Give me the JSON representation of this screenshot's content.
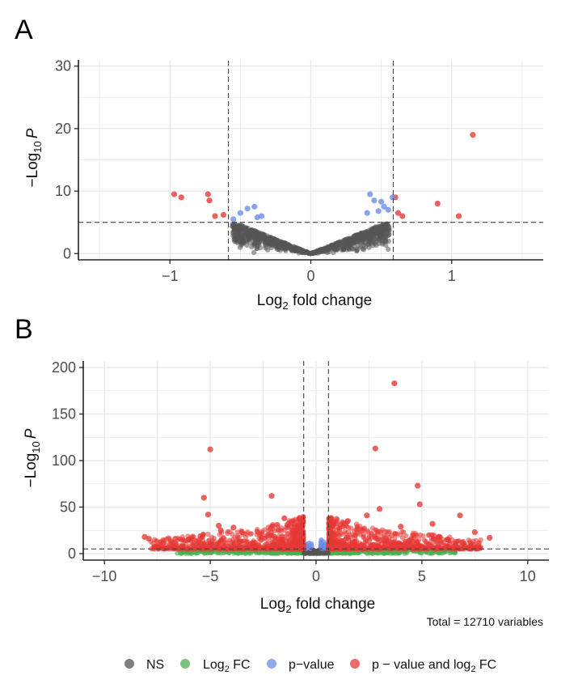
{
  "chart_data": [
    {
      "panel": "A",
      "type": "scatter",
      "xlabel_main": "Log",
      "xlabel_sub": "2",
      "xlabel_rest": " fold change",
      "ylabel_main": "−Log",
      "ylabel_sub": "10",
      "ylabel_italic": "P",
      "xlim": [
        -1.65,
        1.65
      ],
      "ylim": [
        -1,
        31
      ],
      "xticks": [
        -1,
        0,
        1
      ],
      "xtick_labels": [
        "−1",
        "0",
        "1"
      ],
      "yticks": [
        0,
        10,
        20,
        30
      ],
      "ytick_labels": [
        "0",
        "10",
        "20",
        "30"
      ],
      "fc_cutoff": [
        -0.585,
        0.585
      ],
      "p_cutoff": 5,
      "grid": true,
      "ns_shape": "V-shaped cloud from (0,0) rising to ±0.5 at y≈5",
      "significant_points": [
        {
          "x": 1.15,
          "y": 19,
          "cat": "both"
        },
        {
          "x": 0.9,
          "y": 8,
          "cat": "both"
        },
        {
          "x": 1.05,
          "y": 6,
          "cat": "both"
        },
        {
          "x": 0.6,
          "y": 9,
          "cat": "both"
        },
        {
          "x": 0.62,
          "y": 6.5,
          "cat": "both"
        },
        {
          "x": 0.65,
          "y": 6,
          "cat": "both"
        },
        {
          "x": -0.97,
          "y": 9.5,
          "cat": "both"
        },
        {
          "x": -0.92,
          "y": 9,
          "cat": "both"
        },
        {
          "x": -0.73,
          "y": 9.5,
          "cat": "both"
        },
        {
          "x": -0.72,
          "y": 8.5,
          "cat": "both"
        },
        {
          "x": -0.68,
          "y": 6,
          "cat": "both"
        },
        {
          "x": -0.62,
          "y": 6.2,
          "cat": "both"
        },
        {
          "x": -0.55,
          "y": 5.5,
          "cat": "pvalue"
        },
        {
          "x": -0.5,
          "y": 6.5,
          "cat": "pvalue"
        },
        {
          "x": -0.45,
          "y": 7.2,
          "cat": "pvalue"
        },
        {
          "x": -0.4,
          "y": 7.5,
          "cat": "pvalue"
        },
        {
          "x": -0.38,
          "y": 5.8,
          "cat": "pvalue"
        },
        {
          "x": -0.35,
          "y": 6,
          "cat": "pvalue"
        },
        {
          "x": 0.42,
          "y": 9.5,
          "cat": "pvalue"
        },
        {
          "x": 0.45,
          "y": 8.5,
          "cat": "pvalue"
        },
        {
          "x": 0.5,
          "y": 8.3,
          "cat": "pvalue"
        },
        {
          "x": 0.52,
          "y": 7.5,
          "cat": "pvalue"
        },
        {
          "x": 0.55,
          "y": 7,
          "cat": "pvalue"
        },
        {
          "x": 0.4,
          "y": 6.5,
          "cat": "pvalue"
        },
        {
          "x": 0.48,
          "y": 6.8,
          "cat": "pvalue"
        },
        {
          "x": 0.58,
          "y": 9,
          "cat": "pvalue"
        }
      ]
    },
    {
      "panel": "B",
      "type": "scatter",
      "xlabel_main": "Log",
      "xlabel_sub": "2",
      "xlabel_rest": " fold change",
      "ylabel_main": "−Log",
      "ylabel_sub": "10",
      "ylabel_italic": "P",
      "xlim": [
        -11,
        11
      ],
      "ylim": [
        -7,
        207
      ],
      "xticks": [
        -10,
        -5,
        0,
        5,
        10
      ],
      "xtick_labels": [
        "−10",
        "−5",
        "0",
        "5",
        "10"
      ],
      "yticks": [
        0,
        50,
        100,
        150,
        200
      ],
      "ytick_labels": [
        "0",
        "50",
        "100",
        "150",
        "200"
      ],
      "fc_cutoff": [
        -0.585,
        0.585
      ],
      "p_cutoff": 5,
      "grid": true,
      "total_text": "Total = 12710 variables",
      "significant_points": [
        {
          "x": 3.7,
          "y": 183,
          "cat": "both"
        },
        {
          "x": -5.0,
          "y": 112,
          "cat": "both"
        },
        {
          "x": 2.8,
          "y": 113,
          "cat": "both"
        },
        {
          "x": 4.8,
          "y": 73,
          "cat": "both"
        },
        {
          "x": 4.9,
          "y": 53,
          "cat": "both"
        },
        {
          "x": -2.1,
          "y": 62,
          "cat": "both"
        },
        {
          "x": -5.3,
          "y": 60,
          "cat": "both"
        },
        {
          "x": 3.0,
          "y": 48,
          "cat": "both"
        },
        {
          "x": -5.1,
          "y": 42,
          "cat": "both"
        },
        {
          "x": 6.8,
          "y": 41,
          "cat": "both"
        },
        {
          "x": 2.4,
          "y": 41,
          "cat": "both"
        },
        {
          "x": 7.5,
          "y": 23,
          "cat": "both"
        },
        {
          "x": 8.2,
          "y": 17,
          "cat": "both"
        },
        {
          "x": -8.1,
          "y": 18,
          "cat": "both"
        },
        {
          "x": -7.9,
          "y": 16,
          "cat": "both"
        },
        {
          "x": -7.2,
          "y": 12,
          "cat": "both"
        },
        {
          "x": -6.8,
          "y": 12,
          "cat": "both"
        },
        {
          "x": -6.0,
          "y": 15,
          "cat": "both"
        },
        {
          "x": -4.6,
          "y": 30,
          "cat": "both"
        },
        {
          "x": -4.5,
          "y": 25,
          "cat": "both"
        },
        {
          "x": -3.9,
          "y": 28,
          "cat": "both"
        },
        {
          "x": -3.5,
          "y": 23,
          "cat": "both"
        },
        {
          "x": -1.5,
          "y": 38,
          "cat": "both"
        },
        {
          "x": 4.0,
          "y": 29,
          "cat": "both"
        },
        {
          "x": 5.5,
          "y": 32,
          "cat": "both"
        },
        {
          "x": 6.2,
          "y": 15,
          "cat": "both"
        },
        {
          "x": 6.9,
          "y": 12,
          "cat": "both"
        },
        {
          "x": 5.8,
          "y": 18,
          "cat": "both"
        },
        {
          "x": 4.4,
          "y": 14,
          "cat": "both"
        },
        {
          "x": 1.5,
          "y": 35,
          "cat": "both"
        },
        {
          "x": 0.8,
          "y": 30,
          "cat": "both"
        }
      ]
    }
  ],
  "legend": {
    "items": [
      {
        "label_main": "NS",
        "label_sub": "",
        "label_rest": "",
        "color": "#555555"
      },
      {
        "label_main": "Log",
        "label_sub": "2",
        "label_rest": " FC",
        "color": "#4caf50"
      },
      {
        "label_main": "p−value",
        "label_sub": "",
        "label_rest": "",
        "color": "#6b8ee8"
      },
      {
        "label_main": "p − value and log",
        "label_sub": "2",
        "label_rest": " FC",
        "color": "#e53935"
      }
    ]
  },
  "colors": {
    "ns": "#555555",
    "fc": "#4caf50",
    "pvalue": "#6b8ee8",
    "both": "#e53935",
    "grid": "#e8e8e8",
    "cutoff": "#444444"
  }
}
